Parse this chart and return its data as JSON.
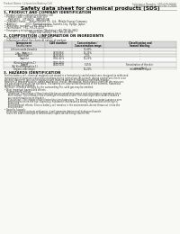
{
  "bg_color": "#f8f8f5",
  "title": "Safety data sheet for chemical products (SDS)",
  "header_left": "Product Name: Lithium Ion Battery Cell",
  "header_right_l1": "Substance Number: SDS-049-00010",
  "header_right_l2": "Established / Revision: Dec.7,2016",
  "section1_title": "1. PRODUCT AND COMPANY IDENTIFICATION",
  "section1_lines": [
    "• Product name: Lithium Ion Battery Cell",
    "• Product code: Cylindrical-type cell",
    "    (INR18650,  INR18650,  INR18650A)",
    "• Company name:    Sanyo Electric Co., Ltd., Mobile Energy Company",
    "• Address:           2001  Kamitakamatsu, Sumoto-City, Hyogo, Japan",
    "• Telephone number:   +81-799-24-4111",
    "• Fax number:  +81-799-26-4129",
    "• Emergency telephone number (Weekday) +81-799-26-3662",
    "                               (Night and holiday) +81-799-26-4101"
  ],
  "section2_title": "2. COMPOSITION / INFORMATION ON INGREDIENTS",
  "section2_lines": [
    "• Substance or preparation: Preparation",
    "• Information about the chemical nature of product:"
  ],
  "table_col_headers": [
    "Component",
    "CAS number",
    "Concentration /\nConcentration range",
    "Classification and\nhazard labeling"
  ],
  "table_sub_header": "Several name",
  "table_rows": [
    [
      "Lithium oxide-Vanadite\n(LiMn₂(CoNiO₂))",
      "-",
      "30-40%",
      "-"
    ],
    [
      "Iron",
      "7439-89-6",
      "15-25%",
      "-"
    ],
    [
      "Aluminum",
      "7429-90-5",
      "2-5%",
      "-"
    ],
    [
      "Graphite\n(Kind of graphite-1)\n(All Kind of graphite-1)",
      "7782-42-5\n7782-40-0",
      "10-25%",
      "-"
    ],
    [
      "Copper",
      "7440-50-8",
      "5-15%",
      "Sensitization of the skin\ngroup No.2"
    ],
    [
      "Organic electrolyte",
      "-",
      "10-20%",
      "Inflammable liquid"
    ]
  ],
  "section3_title": "3. HAZARDS IDENTIFICATION",
  "section3_text": [
    "For this battery cell, chemical materials are stored in a hermetically sealed metal case, designed to withstand",
    "temperature or pressure-induced fluctuations during normal use. As a result, during normal use, there is no",
    "physical danger of ignition or explosion and there no danger of hazardous materials leakage.",
    "However, if exposed to a fire, added mechanical shocks, decompose, when electro-chemical dry miss-use,",
    "the gas release vent will be operated. The battery cell case will be breached of the extreme, hazardous",
    "materials may be released.",
    "Moreover, if heated strongly by the surrounding fire, solid gas may be emitted.",
    "",
    "• Most important hazard and effects:",
    "   Human health effects:",
    "     Inhalation: The release of the electrolyte has an anesthesia action and stimulates a respiratory tract.",
    "     Skin contact: The release of the electrolyte stimulates a skin. The electrolyte skin contact causes a",
    "     sore and stimulation on the skin.",
    "     Eye contact: The release of the electrolyte stimulates eyes. The electrolyte eye contact causes a sore",
    "     and stimulation on the eye. Especially, substance that causes a strong inflammation of the eye is",
    "     contained.",
    "     Environmental effects: Since a battery cell remains in the environment, do not throw out it into the",
    "     environment.",
    "",
    "• Specific hazards:",
    "   If the electrolyte contacts with water, it will generate detrimental hydrogen fluoride.",
    "   Since the neat electrolyte is inflammable liquid, do not bring close to fire."
  ]
}
